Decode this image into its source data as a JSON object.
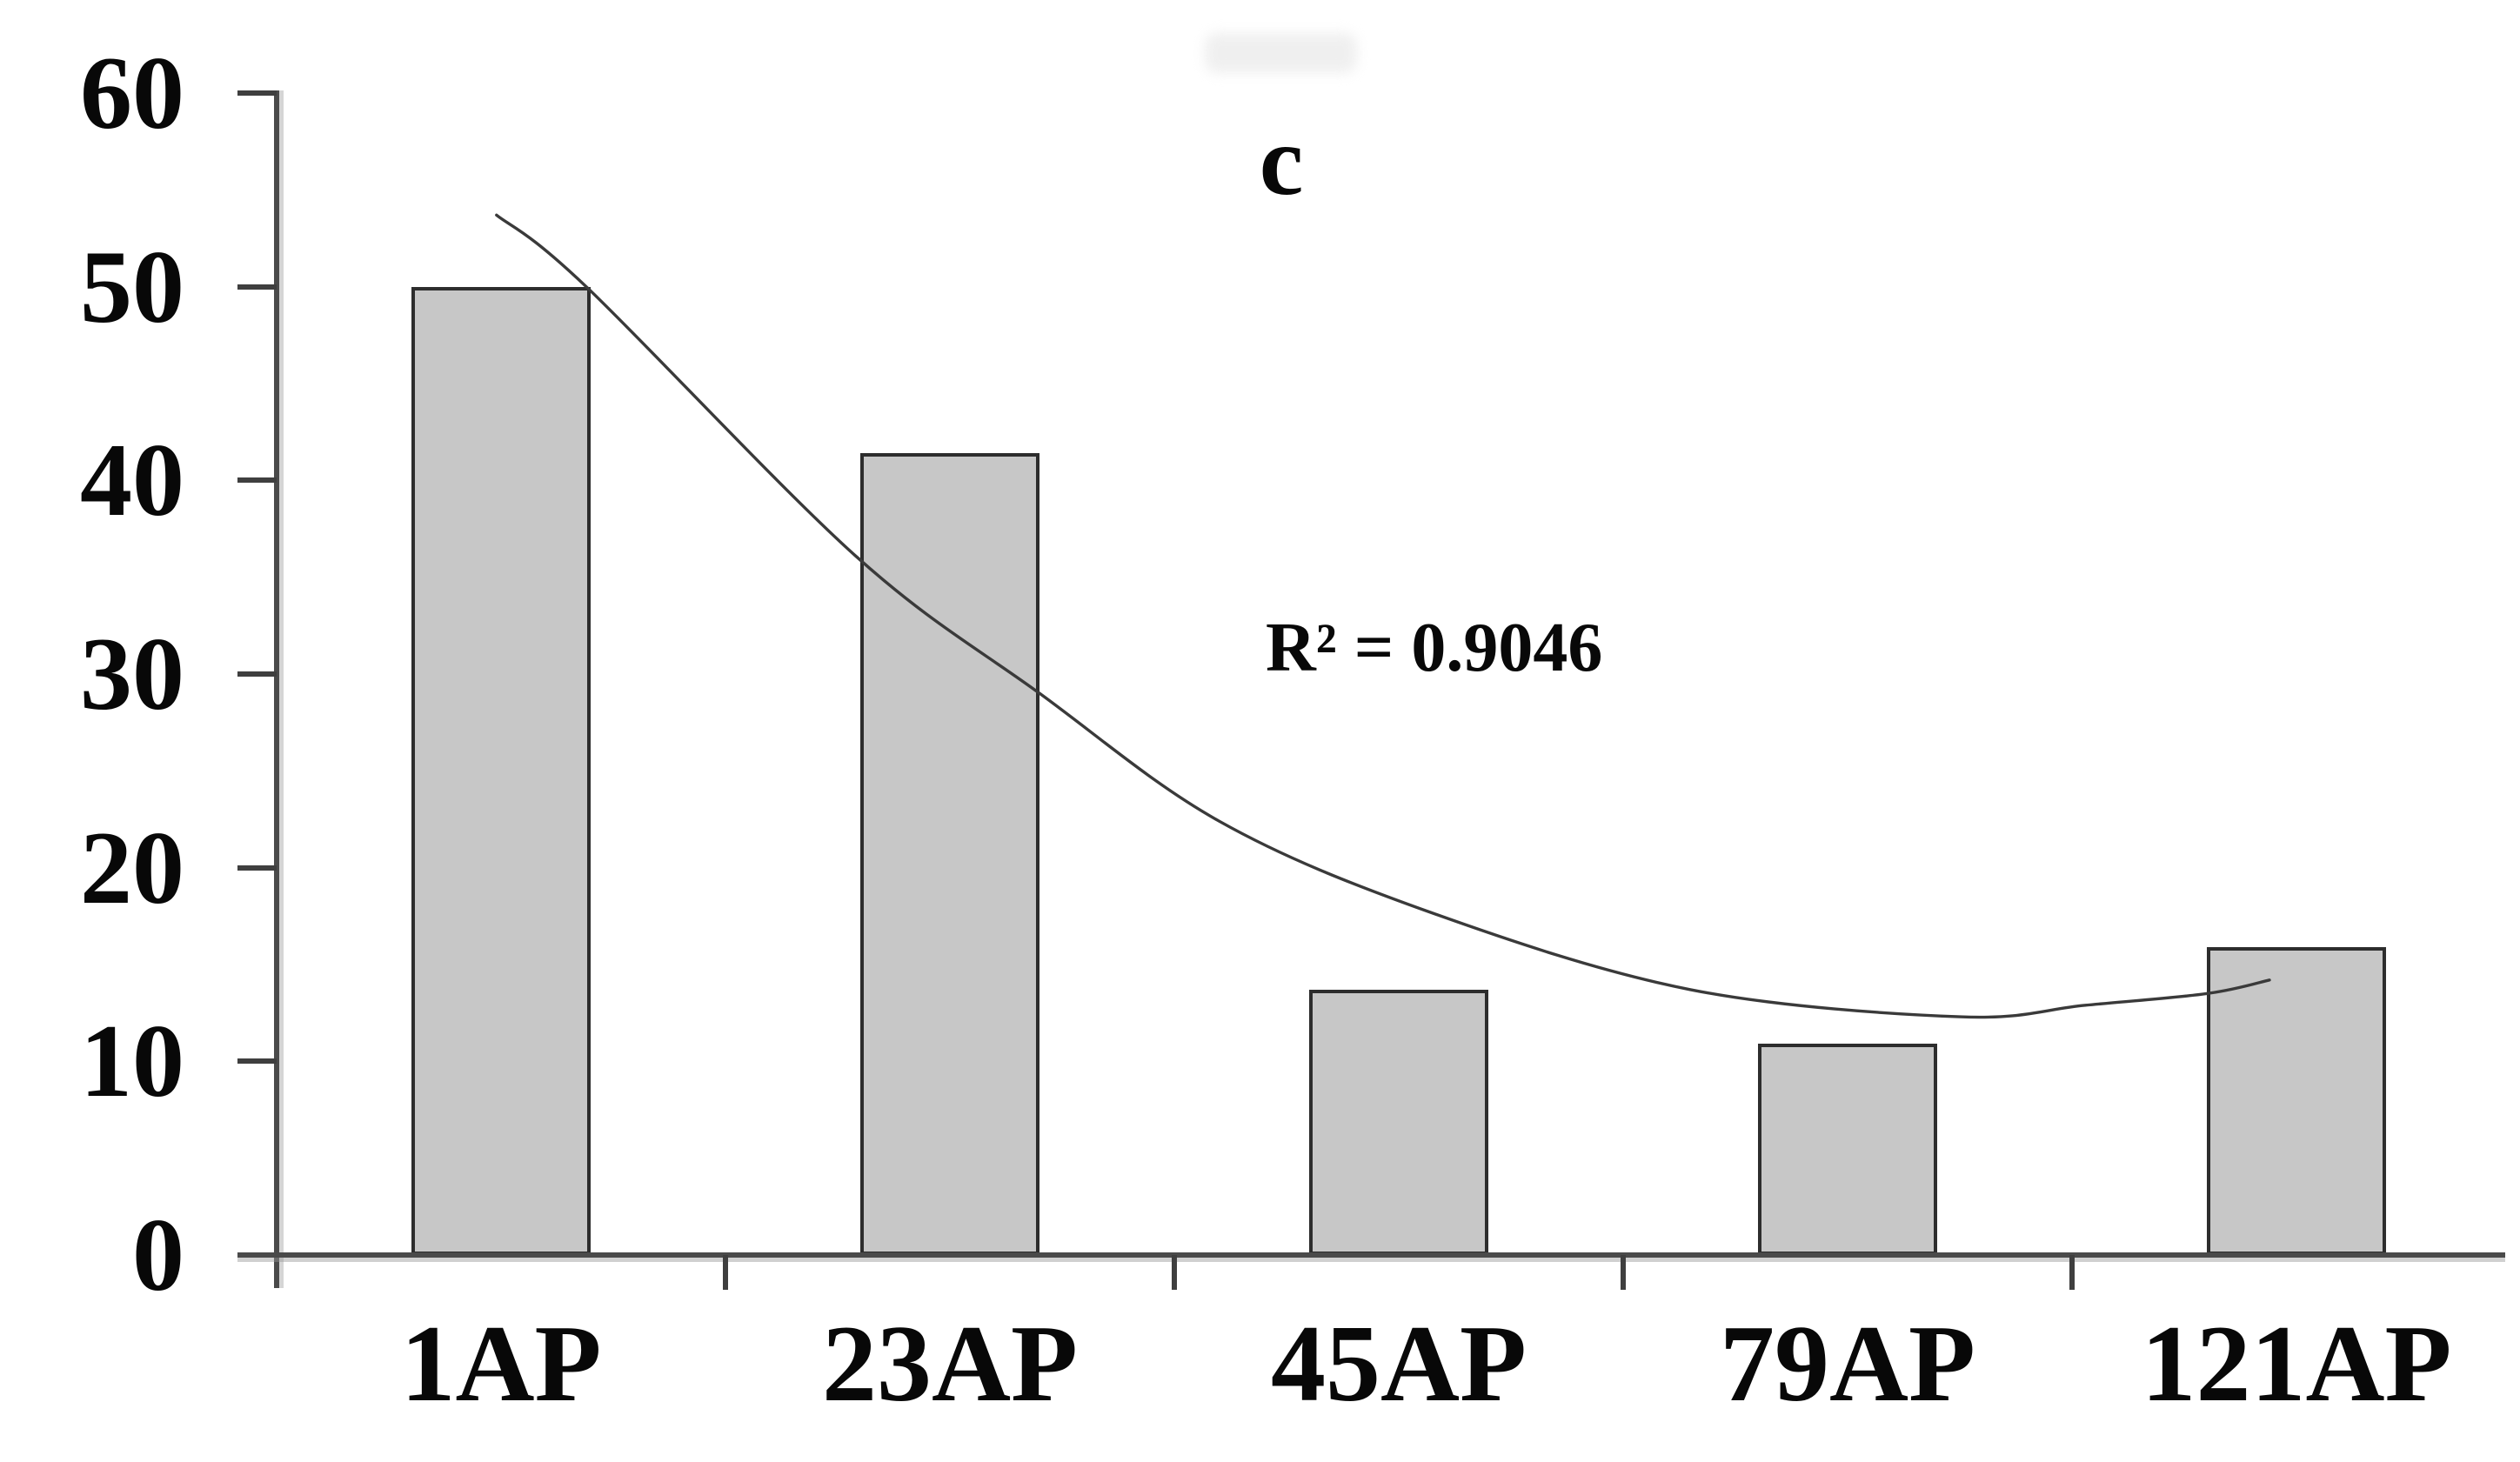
{
  "figure": {
    "panel_label": "c",
    "background": "#ffffff"
  },
  "chart_data": {
    "type": "bar",
    "title": "",
    "xlabel": "",
    "ylabel": "",
    "categories": [
      "1AP",
      "23AP",
      "45AP",
      "79AP",
      "121AP"
    ],
    "values": [
      50,
      41.4,
      13.7,
      10.9,
      15.9
    ],
    "ylim": [
      0,
      60
    ],
    "yticks": [
      0,
      10,
      20,
      30,
      40,
      50,
      60
    ],
    "grid": false,
    "legend": false,
    "annotation": "R² = 0.9046",
    "trendline": {
      "kind": "fitted curve over bar categories",
      "r_squared": 0.9046,
      "points": [
        {
          "u": 0.99,
          "v": 53.7
        },
        {
          "u": 1.19,
          "v": 50.0
        },
        {
          "u": 1.79,
          "v": 36.1
        },
        {
          "u": 2.2,
          "v": 29.0
        },
        {
          "u": 2.6,
          "v": 22.4
        },
        {
          "u": 3.07,
          "v": 17.7
        },
        {
          "u": 3.65,
          "v": 13.7
        },
        {
          "u": 4.25,
          "v": 12.3
        },
        {
          "u": 4.53,
          "v": 12.9
        },
        {
          "u": 4.8,
          "v": 13.5
        },
        {
          "u": 4.94,
          "v": 14.2
        }
      ]
    }
  },
  "style": {
    "bar_fill": "#c7c7c7",
    "bar_border": "#2d2d2d",
    "axis_color": "#4a4a4a",
    "tick_color": "#3f3f3f",
    "trendline_color": "#3a3a3a",
    "text_color": "#080808",
    "ghost_color": "#ededed"
  }
}
